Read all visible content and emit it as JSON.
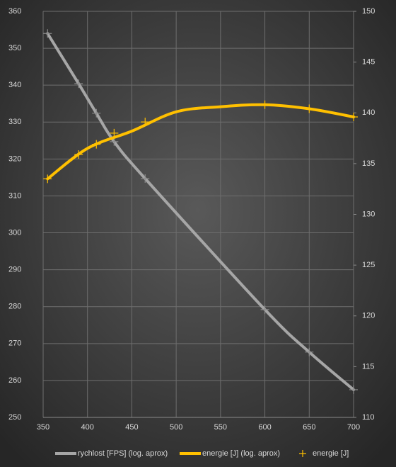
{
  "chart_data": {
    "type": "line",
    "xlim": [
      350,
      700
    ],
    "xticks": [
      350,
      400,
      450,
      500,
      550,
      600,
      650,
      700
    ],
    "ylim": [
      250,
      360
    ],
    "yticks": [
      250,
      260,
      270,
      280,
      290,
      300,
      310,
      320,
      330,
      340,
      350,
      360
    ],
    "y2lim": [
      110,
      150
    ],
    "y2ticks": [
      110,
      115,
      120,
      125,
      130,
      135,
      140,
      145,
      150
    ],
    "grid": true,
    "legend": "bottom",
    "series": [
      {
        "name": "rychlost [FPS] (log. aprox)",
        "color": "#a6a6a6",
        "axis": "y",
        "line": true,
        "markers": true,
        "x": [
          355,
          390,
          410,
          430,
          465,
          600,
          650,
          700
        ],
        "values": [
          354,
          340.4,
          332.4,
          324.7,
          314.7,
          279.2,
          267.7,
          257.5
        ]
      },
      {
        "name": "energie [J] (log. aprox)",
        "color": "#ffc000",
        "axis": "y2",
        "line": true,
        "markers": false,
        "x": [
          355,
          400,
          450,
          500,
          550,
          600,
          650,
          700
        ],
        "values": [
          133.5,
          136.5,
          138.2,
          140.1,
          140.6,
          140.8,
          140.4,
          139.6
        ]
      },
      {
        "name": "energie [J]",
        "color": "#ffc000",
        "axis": "y2",
        "line": false,
        "markers": true,
        "x": [
          355,
          390,
          410,
          430,
          465,
          600,
          650,
          700
        ],
        "values": [
          133.5,
          135.9,
          136.9,
          138.0,
          139.1,
          140.8,
          140.4,
          139.6
        ]
      }
    ]
  }
}
